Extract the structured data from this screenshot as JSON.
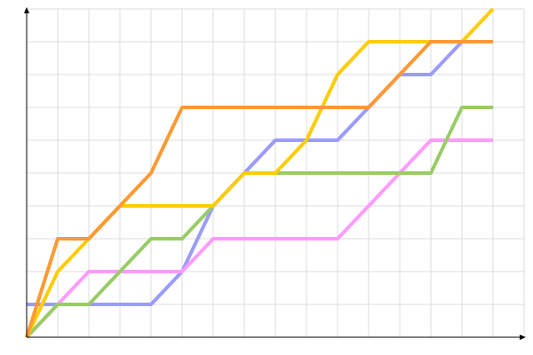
{
  "chart_data": {
    "type": "line",
    "title": "",
    "xlabel": "",
    "ylabel": "",
    "xlim": [
      0,
      16
    ],
    "ylim": [
      0,
      10
    ],
    "grid": true,
    "legend": "none",
    "x": [
      0,
      1,
      2,
      3,
      4,
      5,
      6,
      7,
      8,
      9,
      10,
      11,
      12,
      13,
      14,
      15
    ],
    "series": [
      {
        "color": "#9b9bff",
        "values": [
          1,
          1,
          1,
          1,
          1,
          2,
          4,
          5,
          6,
          6,
          6,
          7,
          8,
          8,
          9,
          9
        ]
      },
      {
        "color": "#ff9bff",
        "values": [
          0,
          1,
          2,
          2,
          2,
          2,
          3,
          3,
          3,
          3,
          3,
          4,
          5,
          6,
          6,
          6
        ]
      },
      {
        "color": "#99cc66",
        "values": [
          0,
          1,
          1,
          2,
          3,
          3,
          4,
          5,
          5,
          5,
          5,
          5,
          5,
          5,
          7,
          7
        ]
      },
      {
        "color": "#ffcc00",
        "values": [
          0,
          2,
          3,
          4,
          4,
          4,
          4,
          5,
          5,
          6,
          8,
          9,
          9,
          9,
          9,
          10
        ]
      },
      {
        "color": "#ff9933",
        "values": [
          0,
          3,
          3,
          4,
          5,
          7,
          7,
          7,
          7,
          7,
          7,
          7,
          8,
          9,
          9,
          9
        ]
      }
    ]
  }
}
